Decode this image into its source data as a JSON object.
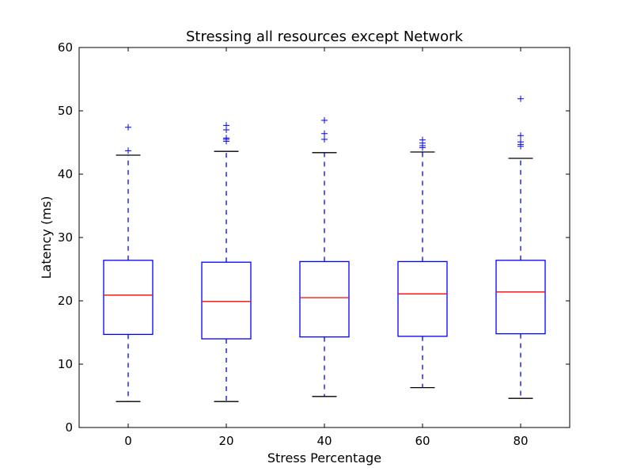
{
  "chart_data": {
    "type": "boxplot",
    "title": "Stressing all resources except Network",
    "xlabel": "Stress Percentage",
    "ylabel": "Latency (ms)",
    "ylim": [
      0,
      60
    ],
    "yticks": [
      0,
      10,
      20,
      30,
      40,
      50,
      60
    ],
    "categories": [
      "0",
      "20",
      "40",
      "60",
      "80"
    ],
    "grid": false,
    "legend": "none",
    "colors": {
      "box": "#0000ff",
      "median": "#ff0000",
      "whisker": "#0000ff",
      "cap": "#000000",
      "flier": "#0000ff"
    },
    "boxes": [
      {
        "category": "0",
        "whislo": 4.1,
        "q1": 14.7,
        "med": 20.9,
        "q3": 26.4,
        "whishi": 43.0,
        "fliers": [
          43.7,
          47.4
        ]
      },
      {
        "category": "20",
        "whislo": 4.1,
        "q1": 14.0,
        "med": 19.9,
        "q3": 26.1,
        "whishi": 43.6,
        "fliers": [
          45.2,
          45.5,
          45.7,
          47.0,
          47.7
        ]
      },
      {
        "category": "40",
        "whislo": 4.9,
        "q1": 14.3,
        "med": 20.5,
        "q3": 26.2,
        "whishi": 43.4,
        "fliers": [
          45.5,
          46.4,
          48.5
        ]
      },
      {
        "category": "60",
        "whislo": 6.3,
        "q1": 14.4,
        "med": 21.1,
        "q3": 26.2,
        "whishi": 43.5,
        "fliers": [
          44.2,
          44.5,
          44.9,
          45.4
        ]
      },
      {
        "category": "80",
        "whislo": 4.6,
        "q1": 14.8,
        "med": 21.4,
        "q3": 26.4,
        "whishi": 42.5,
        "fliers": [
          44.4,
          44.7,
          45.1,
          46.1,
          51.9
        ]
      }
    ]
  }
}
